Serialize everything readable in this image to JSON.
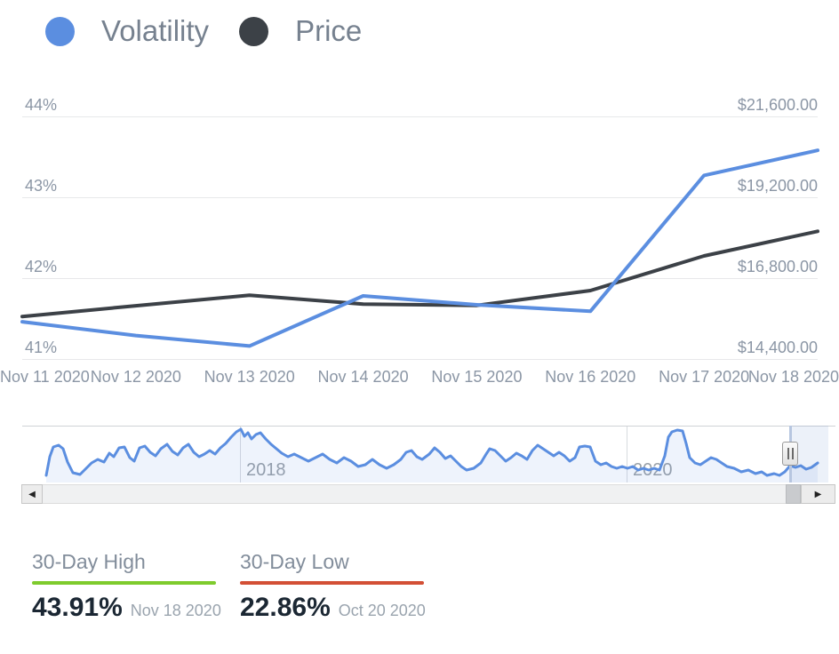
{
  "colors": {
    "volatility_blue": "#5b8ee0",
    "price_dark": "#3c4147",
    "axis_label_gray": "#8b96a5",
    "gridline_gray": "#e7e8ea",
    "high_green": "#7ecb2d",
    "low_red": "#d34f35"
  },
  "chart_data": {
    "type": "line",
    "title": "",
    "x_categories": [
      "Nov 11 2020",
      "Nov 12 2020",
      "Nov 13 2020",
      "Nov 14 2020",
      "Nov 15 2020",
      "Nov 16 2020",
      "Nov 17 2020",
      "Nov 18 2020"
    ],
    "series": [
      {
        "name": "Volatility",
        "yaxis": "left",
        "color": "#5b8ee0",
        "values": [
          41.46,
          41.29,
          41.16,
          41.78,
          41.67,
          41.59,
          43.27,
          43.58
        ]
      },
      {
        "name": "Price",
        "yaxis": "right",
        "color": "#3c4147",
        "values": [
          15660,
          15980,
          16290,
          16030,
          15990,
          16430,
          17460,
          18190
        ]
      }
    ],
    "y_left": {
      "tick_labels": [
        "44%",
        "43%",
        "42%",
        "41%"
      ],
      "max": 44,
      "min": 41,
      "unit": "%"
    },
    "y_right": {
      "tick_labels": [
        "$21,600.00",
        "$19,200.00",
        "$16,800.00",
        "$14,400.00"
      ],
      "max": 21600,
      "min": 14400,
      "unit": "USD"
    },
    "grid": "horizontal",
    "legend_position": "top-left"
  },
  "navigator": {
    "line_color": "#5b8ee0",
    "fill_color": "rgba(91,142,224,0.10)",
    "year_marks": [
      {
        "label": "2018",
        "x": 270
      },
      {
        "label": "2020",
        "x": 705
      }
    ],
    "points": [
      [
        52,
        535
      ],
      [
        56,
        514
      ],
      [
        60,
        503
      ],
      [
        66,
        501
      ],
      [
        71,
        505
      ],
      [
        76,
        520
      ],
      [
        82,
        532
      ],
      [
        90,
        534
      ],
      [
        97,
        527
      ],
      [
        103,
        521
      ],
      [
        110,
        517
      ],
      [
        117,
        520
      ],
      [
        123,
        510
      ],
      [
        128,
        514
      ],
      [
        134,
        504
      ],
      [
        140,
        503
      ],
      [
        146,
        515
      ],
      [
        151,
        519
      ],
      [
        157,
        504
      ],
      [
        163,
        502
      ],
      [
        169,
        509
      ],
      [
        175,
        513
      ],
      [
        181,
        505
      ],
      [
        188,
        500
      ],
      [
        194,
        508
      ],
      [
        200,
        512
      ],
      [
        206,
        504
      ],
      [
        212,
        500
      ],
      [
        218,
        509
      ],
      [
        224,
        514
      ],
      [
        230,
        511
      ],
      [
        236,
        507
      ],
      [
        242,
        511
      ],
      [
        248,
        504
      ],
      [
        254,
        499
      ],
      [
        260,
        492
      ],
      [
        266,
        486
      ],
      [
        271,
        483
      ],
      [
        275,
        491
      ],
      [
        279,
        487
      ],
      [
        283,
        494
      ],
      [
        288,
        489
      ],
      [
        293,
        487
      ],
      [
        299,
        494
      ],
      [
        305,
        500
      ],
      [
        311,
        505
      ],
      [
        317,
        510
      ],
      [
        324,
        514
      ],
      [
        331,
        511
      ],
      [
        339,
        515
      ],
      [
        347,
        519
      ],
      [
        355,
        515
      ],
      [
        363,
        511
      ],
      [
        371,
        517
      ],
      [
        379,
        521
      ],
      [
        387,
        515
      ],
      [
        395,
        519
      ],
      [
        403,
        525
      ],
      [
        411,
        523
      ],
      [
        419,
        517
      ],
      [
        427,
        523
      ],
      [
        435,
        527
      ],
      [
        443,
        523
      ],
      [
        451,
        517
      ],
      [
        457,
        509
      ],
      [
        463,
        507
      ],
      [
        469,
        514
      ],
      [
        475,
        517
      ],
      [
        483,
        511
      ],
      [
        489,
        504
      ],
      [
        495,
        509
      ],
      [
        501,
        516
      ],
      [
        507,
        513
      ],
      [
        513,
        519
      ],
      [
        519,
        525
      ],
      [
        525,
        529
      ],
      [
        533,
        527
      ],
      [
        541,
        521
      ],
      [
        547,
        511
      ],
      [
        551,
        505
      ],
      [
        557,
        507
      ],
      [
        563,
        513
      ],
      [
        569,
        519
      ],
      [
        575,
        515
      ],
      [
        581,
        510
      ],
      [
        587,
        513
      ],
      [
        593,
        517
      ],
      [
        599,
        507
      ],
      [
        605,
        501
      ],
      [
        611,
        505
      ],
      [
        617,
        509
      ],
      [
        623,
        513
      ],
      [
        629,
        509
      ],
      [
        635,
        513
      ],
      [
        641,
        519
      ],
      [
        647,
        515
      ],
      [
        652,
        503
      ],
      [
        658,
        502
      ],
      [
        664,
        503
      ],
      [
        670,
        519
      ],
      [
        676,
        523
      ],
      [
        682,
        521
      ],
      [
        688,
        525
      ],
      [
        694,
        527
      ],
      [
        700,
        525
      ],
      [
        706,
        527
      ],
      [
        712,
        525
      ],
      [
        718,
        529
      ],
      [
        724,
        527
      ],
      [
        730,
        529
      ],
      [
        736,
        527
      ],
      [
        742,
        529
      ],
      [
        748,
        513
      ],
      [
        752,
        492
      ],
      [
        756,
        486
      ],
      [
        762,
        484
      ],
      [
        768,
        485
      ],
      [
        772,
        499
      ],
      [
        776,
        515
      ],
      [
        782,
        521
      ],
      [
        788,
        523
      ],
      [
        794,
        519
      ],
      [
        800,
        515
      ],
      [
        806,
        517
      ],
      [
        812,
        521
      ],
      [
        818,
        525
      ],
      [
        826,
        527
      ],
      [
        834,
        531
      ],
      [
        842,
        529
      ],
      [
        850,
        533
      ],
      [
        857,
        531
      ],
      [
        863,
        535
      ],
      [
        871,
        533
      ],
      [
        877,
        535
      ],
      [
        883,
        531
      ],
      [
        889,
        524
      ],
      [
        895,
        526
      ],
      [
        901,
        524
      ],
      [
        907,
        528
      ],
      [
        913,
        526
      ],
      [
        920,
        521
      ]
    ]
  },
  "scrollbar": {
    "left_arrow": "◀",
    "right_arrow": "▶"
  },
  "stats": [
    {
      "label": "30-Day High",
      "value": "43.91%",
      "date": "Nov 18 2020",
      "color": "#7ecb2d"
    },
    {
      "label": "30-Day Low",
      "value": "22.86%",
      "date": "Oct 20 2020",
      "color": "#d34f35"
    }
  ]
}
